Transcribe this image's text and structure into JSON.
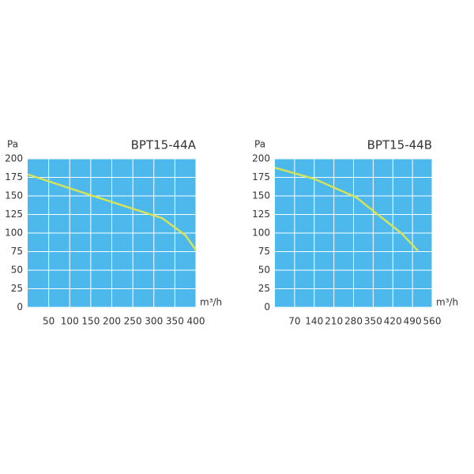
{
  "chart_data": [
    {
      "type": "line",
      "title": "BPT15-44A",
      "y_label": "Pa",
      "x_label": "m³/h",
      "x": [
        0,
        150,
        320,
        375,
        400
      ],
      "values": [
        179,
        151,
        120,
        97,
        77
      ],
      "color": "#d4e35a",
      "background": "#4db8ec",
      "grid": true,
      "xlim": [
        0,
        400
      ],
      "ylim": [
        0,
        200
      ],
      "xticks": [
        50,
        100,
        150,
        200,
        250,
        300,
        350,
        400
      ],
      "yticks": [
        0,
        25,
        50,
        75,
        100,
        125,
        150,
        175,
        200
      ]
    },
    {
      "type": "line",
      "title": "BPT15-44B",
      "y_label": "Pa",
      "x_label": "m³/h",
      "x": [
        0,
        140,
        290,
        450,
        510
      ],
      "values": [
        188,
        173,
        148,
        100,
        76
      ],
      "color": "#d4e35a",
      "background": "#4db8ec",
      "grid": true,
      "xlim": [
        0,
        560
      ],
      "ylim": [
        0,
        200
      ],
      "xticks": [
        70,
        140,
        210,
        280,
        350,
        420,
        490,
        560
      ],
      "yticks": [
        0,
        25,
        50,
        75,
        100,
        125,
        150,
        175,
        200
      ]
    }
  ]
}
